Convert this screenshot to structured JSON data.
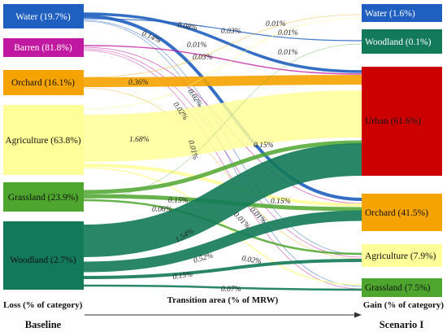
{
  "colors": {
    "water": "#1f5fbf",
    "barren": "#c018a0",
    "orchard": "#f5a300",
    "agriculture": "#ffff99",
    "grassland": "#4ea62e",
    "woodland": "#127a58",
    "urban": "#cc0000"
  },
  "left_nodes": [
    {
      "id": "L-water",
      "label": "Water (19.7%)",
      "color": "#1f5fbf",
      "text": "#ffffff"
    },
    {
      "id": "L-barren",
      "label": "Barren (81.8%)",
      "color": "#c018a0",
      "text": "#ffffff"
    },
    {
      "id": "L-orchard",
      "label": "Orchard (16.1%)",
      "color": "#f5a300",
      "text": "#111111"
    },
    {
      "id": "L-agri",
      "label": "Agriculture (63.8%)",
      "color": "#ffff99",
      "text": "#111111"
    },
    {
      "id": "L-grass",
      "label": "Grassland (23.9%)",
      "color": "#4ea62e",
      "text": "#111111"
    },
    {
      "id": "L-wood",
      "label": "Woodland (2.7%)",
      "color": "#127a58",
      "text": "#111111"
    }
  ],
  "right_nodes": [
    {
      "id": "R-water",
      "label": "Water (1.6%)",
      "color": "#1f5fbf",
      "text": "#ffffff"
    },
    {
      "id": "R-wood",
      "label": "Woodland (0.1%)",
      "color": "#127a58",
      "text": "#ffffff"
    },
    {
      "id": "R-urban",
      "label": "Urban (61.6%)",
      "color": "#cc0000",
      "text": "#111111"
    },
    {
      "id": "R-orchard",
      "label": "Orchard (41.5%)",
      "color": "#f5a300",
      "text": "#111111"
    },
    {
      "id": "R-agri",
      "label": "Agriculture (7.9%)",
      "color": "#ffff99",
      "text": "#111111"
    },
    {
      "id": "R-grass",
      "label": "Grassland (7.5%)",
      "color": "#4ea62e",
      "text": "#111111"
    }
  ],
  "flow_labels": [
    "0.14%",
    "0.08%",
    "0.03%",
    "0.01%",
    "0.01%",
    "0.01%",
    "0.03%",
    "0.01%",
    "0.36%",
    "0.02%",
    "0.02%",
    "1.68%",
    "0.01%",
    "0.15%",
    "0.15%",
    "0.15%",
    "0.06%",
    "0.01%",
    "0.01%",
    "1.54%",
    "0.52%",
    "0.02%",
    "0.15%",
    "0.07%"
  ],
  "axis": {
    "left": "Loss (% of category)",
    "center": "Transition area (% of MRW)",
    "right": "Gain (% of category)"
  },
  "footer": {
    "left": "Baseline",
    "right": "Scenario I"
  }
}
